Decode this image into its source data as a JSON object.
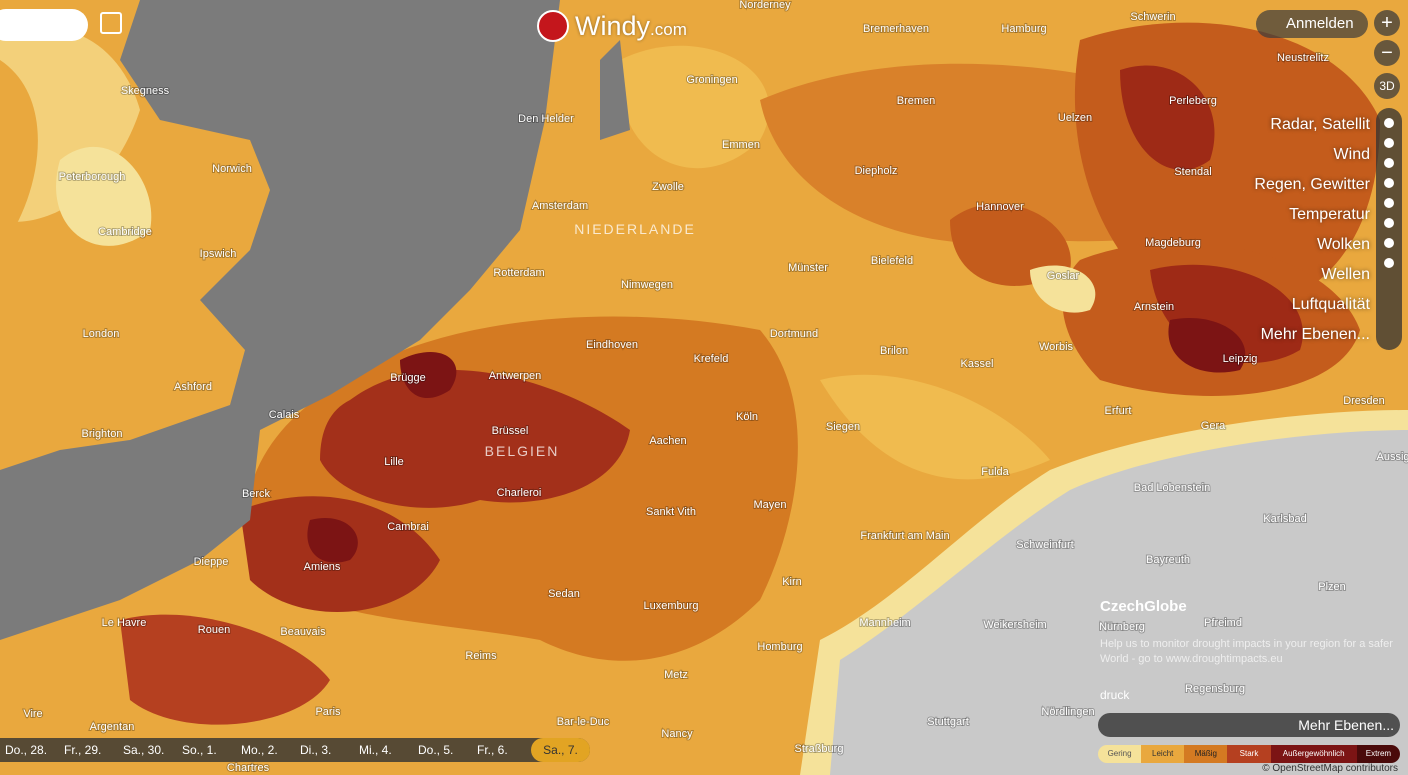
{
  "header": {
    "logo": "Windy",
    "logo_suffix": ".com",
    "login": "Anmelden",
    "zoom_in": "+",
    "zoom_out": "−",
    "view_3d": "3D"
  },
  "layers_menu": [
    "Radar, Satellit",
    "Wind",
    "Regen, Gewitter",
    "Temperatur",
    "Wolken",
    "Wellen",
    "Luftqualität",
    "Mehr Ebenen..."
  ],
  "map_labels": {
    "countries": [
      "NIEDERLANDE",
      "BELGIEN"
    ],
    "cities": [
      "Norderney",
      "Skegness",
      "Peterborough",
      "Norwich",
      "Cambridge",
      "Ipswich",
      "London",
      "Ashford",
      "Brighton",
      "Calais",
      "Den Helder",
      "Amsterdam",
      "Zwolle",
      "Groningen",
      "Emmen",
      "Rotterdam",
      "Nimwegen",
      "Eindhoven",
      "Antwerpen",
      "Brügge",
      "Brüssel",
      "Lille",
      "Charleroi",
      "Berck",
      "Cambrai",
      "Amiens",
      "Dieppe",
      "Le Havre",
      "Rouen",
      "Beauvais",
      "Reims",
      "Sedan",
      "Luxemburg",
      "Metz",
      "Nancy",
      "Paris",
      "Vire",
      "Argentan",
      "Chartres",
      "Bar-le-Duc",
      "Straßburg",
      "Stuttgart",
      "Sankt Vith",
      "Aachen",
      "Köln",
      "Krefeld",
      "Dortmund",
      "Münster",
      "Bielefeld",
      "Diepholz",
      "Bremen",
      "Bremerhaven",
      "Hamburg",
      "Uelzen",
      "Hannover",
      "Goslar",
      "Brilon",
      "Kassel",
      "Siegen",
      "Mayen",
      "Frankfurt am Main",
      "Kirn",
      "Mannheim",
      "Homburg",
      "Weikersheim",
      "Schweinfurt",
      "Fulda",
      "Erfurt",
      "Worbis",
      "Gera",
      "Leipzig",
      "Arnstein",
      "Magdeburg",
      "Stendal",
      "Perleberg",
      "Schwerin",
      "Neustrelitz",
      "Dresden",
      "Bad Lobenstein",
      "Bayreuth",
      "Nürnberg",
      "Pfreimd",
      "Regensburg",
      "Nördlingen",
      "Karlsbad",
      "Plzen",
      "Aussig"
    ]
  },
  "sponsor": {
    "name": "CzechGlobe",
    "message": "Help us to monitor drought impacts in your region for a safer World - go to www.droughtimpacts.eu"
  },
  "overlay_toggle": "druck",
  "toolbar": {
    "more": "Mehr Ebenen..."
  },
  "timeline": [
    "Do., 28.",
    "Fr., 29.",
    "Sa., 30.",
    "So., 1.",
    "Mo., 2.",
    "Di., 3.",
    "Mi., 4.",
    "Do., 5.",
    "Fr., 6.",
    "Sa., 7."
  ],
  "legend": [
    "Gering",
    "Leicht",
    "Mäßig",
    "Stark",
    "Außergewöhnlich",
    "Extrem"
  ],
  "attribution": "© OpenStreetMap contributors"
}
